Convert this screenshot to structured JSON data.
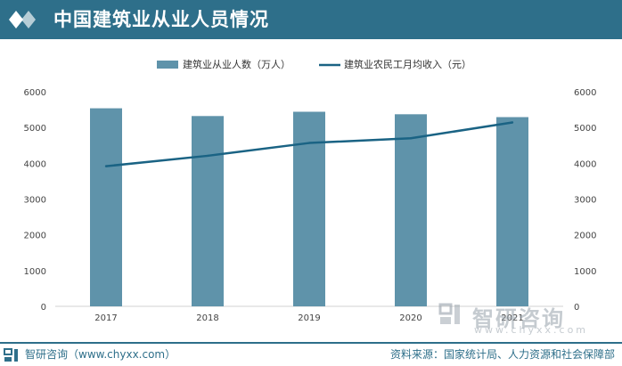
{
  "header": {
    "title": "中国建筑业从业人员情况"
  },
  "chart_data": {
    "type": "bar+line",
    "categories": [
      "2017",
      "2018",
      "2019",
      "2020",
      "2021"
    ],
    "series": [
      {
        "name": "建筑业从业人数（万人）",
        "type": "bar",
        "axis": "left",
        "color": "#5f93aa",
        "values": [
          5537,
          5320,
          5440,
          5370,
          5290
        ]
      },
      {
        "name": "建筑业农民工月均收入（元）",
        "type": "line",
        "axis": "right",
        "color": "#1a6384",
        "values": [
          3918,
          4209,
          4567,
          4699,
          5141
        ]
      }
    ],
    "y_left": {
      "ticks": [
        "0",
        "1000",
        "2000",
        "3000",
        "4000",
        "5000",
        "6000"
      ],
      "range": [
        0,
        6000
      ]
    },
    "y_right": {
      "ticks": [
        "0",
        "1000",
        "2000",
        "3000",
        "4000",
        "5000",
        "6000"
      ],
      "range": [
        0,
        6000
      ]
    },
    "legend_position": "top-center",
    "grid": false
  },
  "watermark": {
    "name": "智研咨询",
    "url": "www.chyxx.com"
  },
  "footer": {
    "left": "智研咨询（www.chyxx.com）",
    "right": "资料来源：国家统计局、人力资源和社会保障部"
  }
}
